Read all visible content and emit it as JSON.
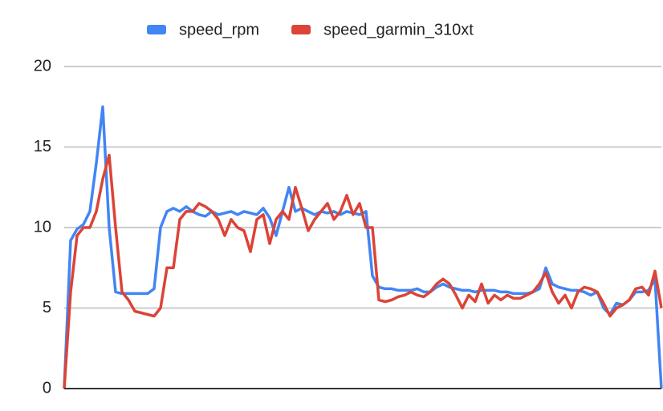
{
  "chart_data": {
    "type": "line",
    "series": [
      {
        "name": "speed_rpm",
        "color": "#4285f4",
        "values": [
          0,
          9.2,
          9.9,
          10.2,
          11,
          14,
          17.5,
          10,
          6,
          5.9,
          5.9,
          5.9,
          5.9,
          5.9,
          6.2,
          10,
          11,
          11.2,
          11,
          11.3,
          11,
          10.8,
          10.7,
          11,
          10.8,
          10.9,
          11,
          10.8,
          11,
          10.9,
          10.8,
          11.2,
          10.6,
          9.5,
          11,
          12.5,
          11,
          11.2,
          11,
          10.8,
          11,
          10.9,
          11,
          10.8,
          11,
          10.9,
          10.8,
          11,
          7,
          6.3,
          6.2,
          6.2,
          6.1,
          6.1,
          6.1,
          6.2,
          6,
          6,
          6.3,
          6.5,
          6.3,
          6.2,
          6.1,
          6.1,
          6,
          6.1,
          6.1,
          6.1,
          6,
          6,
          5.9,
          5.9,
          5.9,
          6,
          6.2,
          7.5,
          6.5,
          6.3,
          6.2,
          6.1,
          6.1,
          6,
          5.8,
          6,
          5,
          4.6,
          5.3,
          5.2,
          5.5,
          6,
          6,
          6.1,
          6.8,
          0
        ]
      },
      {
        "name": "speed_garmin_310xt",
        "color": "#db4437",
        "values": [
          0,
          6,
          9.5,
          10,
          10,
          11,
          13,
          14.5,
          10,
          6,
          5.5,
          4.8,
          4.7,
          4.6,
          4.5,
          5,
          7.5,
          7.5,
          10.5,
          11,
          11,
          11.5,
          11.3,
          11,
          10.5,
          9.5,
          10.5,
          10,
          9.8,
          8.5,
          10.5,
          10.8,
          9,
          10.5,
          11,
          10.5,
          12.5,
          11.2,
          9.8,
          10.5,
          11,
          11.5,
          10.5,
          11,
          12,
          10.8,
          11.5,
          10,
          10,
          5.5,
          5.4,
          5.5,
          5.7,
          5.8,
          6,
          5.8,
          5.7,
          6,
          6.5,
          6.8,
          6.5,
          5.8,
          5,
          5.8,
          5.4,
          6.5,
          5.3,
          5.8,
          5.5,
          5.8,
          5.6,
          5.6,
          5.8,
          6,
          6.5,
          7.2,
          6,
          5.3,
          5.8,
          5,
          6,
          6.3,
          6.2,
          6,
          5.3,
          4.5,
          5,
          5.2,
          5.5,
          6.2,
          6.3,
          5.8,
          7.3,
          5
        ]
      }
    ],
    "ylim": [
      0,
      20
    ],
    "yticks": [
      0,
      5,
      10,
      15,
      20
    ],
    "grid": true,
    "legend": "top"
  }
}
